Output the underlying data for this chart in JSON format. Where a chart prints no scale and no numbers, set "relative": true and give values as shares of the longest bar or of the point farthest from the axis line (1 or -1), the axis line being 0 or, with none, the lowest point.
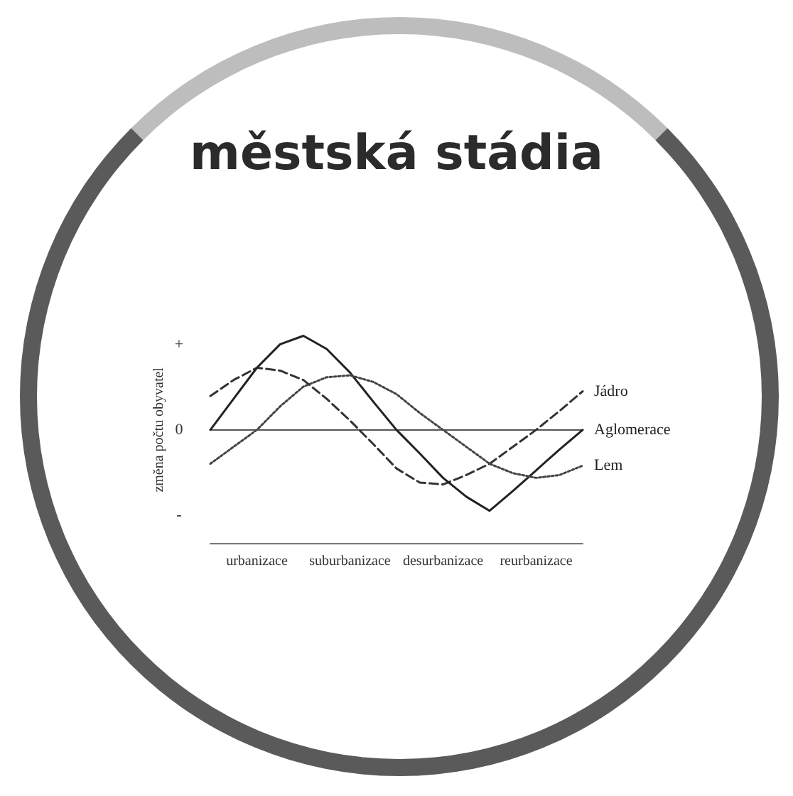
{
  "chart_data": {
    "type": "line",
    "title": "městská stádia",
    "ylabel": "změna počtu obyvatel",
    "relative": true,
    "legend": false,
    "marker": "none",
    "categories": [
      null,
      null,
      "urbanizace",
      null,
      null,
      null,
      "suburbanizace",
      null,
      null,
      null,
      "desurbanizace",
      null,
      null,
      null,
      "reurbanizace",
      null,
      null
    ],
    "annotations": [
      "+",
      "0",
      "-"
    ],
    "series": [
      {
        "name": "Jádro",
        "color": "#333333",
        "line_style": "dashed",
        "values": [
          0.36,
          0.53,
          0.66,
          0.63,
          0.53,
          0.33,
          0.1,
          -0.15,
          -0.41,
          -0.56,
          -0.58,
          -0.48,
          -0.36,
          -0.18,
          0,
          0.2,
          0.41
        ]
      },
      {
        "name": "Aglomerace",
        "color": "#222222",
        "line_style": "solid",
        "values": [
          0,
          0.33,
          0.66,
          0.91,
          1,
          0.86,
          0.61,
          0.3,
          0,
          -0.25,
          -0.51,
          -0.71,
          -0.86,
          -0.65,
          -0.43,
          -0.21,
          0
        ]
      },
      {
        "name": "Lem",
        "color": "#444444",
        "line_style": "dotted",
        "values": [
          -0.36,
          -0.18,
          0,
          0.25,
          0.46,
          0.56,
          0.58,
          0.51,
          0.38,
          0.18,
          0,
          -0.18,
          -0.36,
          -0.46,
          -0.51,
          -0.48,
          -0.38
        ]
      }
    ]
  }
}
